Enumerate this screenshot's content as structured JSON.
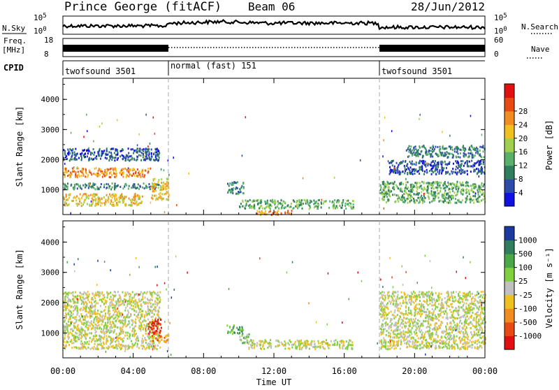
{
  "header": {
    "station": "Prince George (fitACF)",
    "beam": "Beam 06",
    "date": "28/Jun/2012"
  },
  "strip": {
    "left_nsky": "N.Sky",
    "left_freq_line1": "Freq.",
    "left_freq_line2": "[MHz]",
    "left_cpid": "CPID",
    "right_nsearch": "N.Search",
    "right_nave": "Nave",
    "nsky_ticks": [
      "10^5",
      "10^0"
    ],
    "freq_ticks": [
      "18",
      "8"
    ],
    "nave_ticks": [
      "60",
      "0"
    ],
    "cpid_segments": [
      {
        "label": "twofsound 3501",
        "start_hour": 0,
        "end_hour": 6
      },
      {
        "label": "normal (fast) 151",
        "start_hour": 6,
        "end_hour": 18
      },
      {
        "label": "twofsound 3501",
        "start_hour": 18,
        "end_hour": 24
      }
    ]
  },
  "chart_data": [
    {
      "type": "heatmap",
      "name": "power",
      "ylabel": "Slant Range [km]",
      "y_ticks": [
        "1000",
        "2000",
        "3000",
        "4000"
      ],
      "ylim": [
        180,
        4700
      ],
      "colorbar": {
        "label": "Power [dB]",
        "ticks": [
          "4",
          "8",
          "12",
          "16",
          "20",
          "24",
          "28"
        ],
        "colors": [
          "#1010e0",
          "#2c4ca8",
          "#2f7f5f",
          "#58b06a",
          "#a0d050",
          "#f0c020",
          "#f08c20",
          "#e84a14",
          "#e01010"
        ]
      },
      "blobs": [
        {
          "t0": 0.0,
          "t1": 5.0,
          "r0": 1450,
          "r1": 1750,
          "level": 6
        },
        {
          "t0": 0.0,
          "t1": 4.5,
          "r0": 500,
          "r1": 900,
          "level": 5
        },
        {
          "t0": 0.0,
          "t1": 5.5,
          "r0": 1050,
          "r1": 1250,
          "level": 2
        },
        {
          "t0": 0.0,
          "t1": 5.5,
          "r0": 2000,
          "r1": 2400,
          "level": 1
        },
        {
          "t0": 5.0,
          "t1": 6.0,
          "r0": 700,
          "r1": 1400,
          "level": 5
        },
        {
          "t0": 9.3,
          "t1": 10.3,
          "r0": 900,
          "r1": 1300,
          "level": 2
        },
        {
          "t0": 10.0,
          "t1": 16.5,
          "r0": 400,
          "r1": 700,
          "level": 3
        },
        {
          "t0": 11.0,
          "t1": 13.0,
          "r0": 200,
          "r1": 350,
          "level": 6
        },
        {
          "t0": 18.0,
          "t1": 24.0,
          "r0": 600,
          "r1": 1300,
          "level": 3
        },
        {
          "t0": 18.5,
          "t1": 24.0,
          "r0": 1550,
          "r1": 2000,
          "level": 1
        },
        {
          "t0": 19.5,
          "t1": 24.0,
          "r0": 2100,
          "r1": 2500,
          "level": 2
        }
      ]
    },
    {
      "type": "heatmap",
      "name": "velocity",
      "ylabel": "Slant Range [km]",
      "y_ticks": [
        "1000",
        "2000",
        "3000",
        "4000"
      ],
      "ylim": [
        180,
        4700
      ],
      "colorbar": {
        "label": "Velocity [m s⁻¹]",
        "ticks": [
          "1000",
          "500",
          "100",
          "25",
          "-25",
          "-100",
          "-500",
          "-1000"
        ],
        "colors": [
          "#1a3aa0",
          "#2f7f5f",
          "#4aa848",
          "#80d040",
          "#c0c0c0",
          "#f0c020",
          "#f08c20",
          "#e84a14",
          "#e01010"
        ]
      },
      "blobs": [
        {
          "t0": 0.0,
          "t1": 5.5,
          "r0": 500,
          "r1": 2400,
          "level": 4
        },
        {
          "t0": 4.8,
          "t1": 5.6,
          "r0": 1000,
          "r1": 1500,
          "level": 8
        },
        {
          "t0": 5.0,
          "t1": 6.0,
          "r0": 700,
          "r1": 1000,
          "level": 6
        },
        {
          "t0": 9.3,
          "t1": 10.3,
          "r0": 1000,
          "r1": 1300,
          "level": 2
        },
        {
          "t0": 10.0,
          "t1": 10.6,
          "r0": 700,
          "r1": 1000,
          "level": 3
        },
        {
          "t0": 10.5,
          "t1": 16.5,
          "r0": 500,
          "r1": 800,
          "level": 4
        },
        {
          "t0": 18.0,
          "t1": 24.0,
          "r0": 500,
          "r1": 2400,
          "level": 4
        }
      ]
    }
  ],
  "xaxis": {
    "label": "Time UT",
    "ticks": [
      "00:00",
      "04:00",
      "08:00",
      "12:00",
      "16:00",
      "20:00",
      "00:00"
    ],
    "xlim_hours": [
      0,
      24
    ]
  }
}
